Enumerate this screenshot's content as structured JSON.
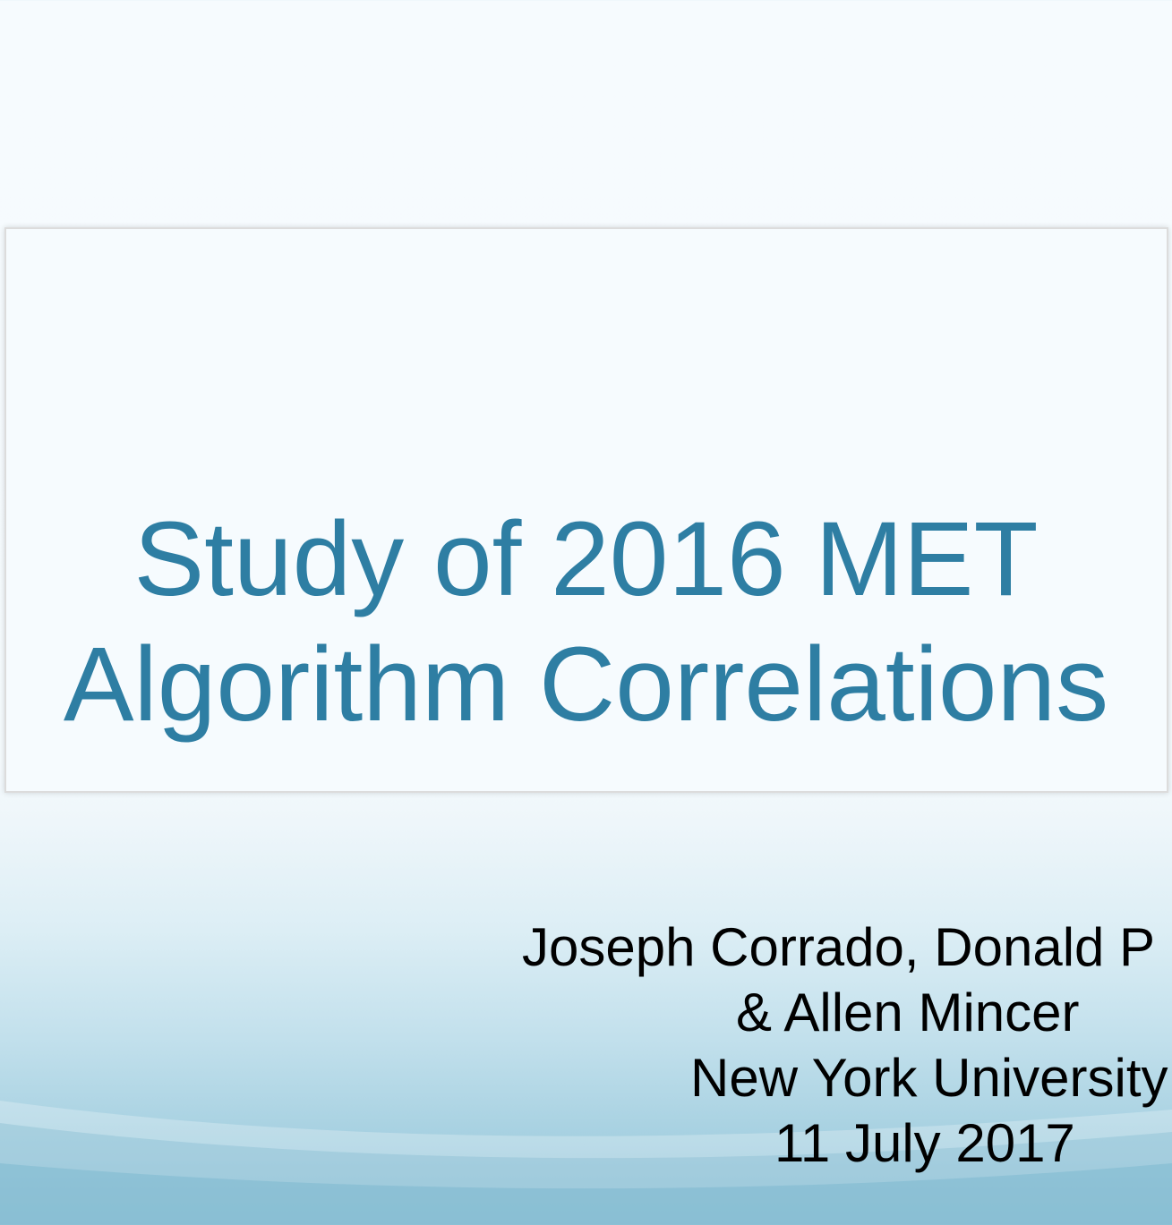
{
  "slide": {
    "title_lines": [
      "Study of 2016 MET",
      "Algorithm Correlations"
    ],
    "subtitle_lines": [
      "Joseph Corrado,  Donald P",
      "& Allen Mincer",
      "New York University",
      "11 July 2017"
    ],
    "colors": {
      "title_text": "#2e7ea3",
      "subtitle_text": "#000000",
      "background_top": "#f6fbfe",
      "background_bottom": "#8dc1d6"
    }
  }
}
